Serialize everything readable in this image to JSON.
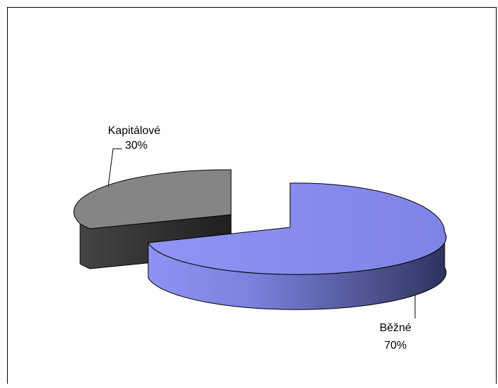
{
  "chart_data": {
    "type": "pie",
    "three_d": true,
    "exploded": true,
    "title": "",
    "slices": [
      {
        "label": "Běžné",
        "value": 70,
        "percent_label": "70%",
        "color": "#8A8EF0",
        "dark_color": "#3A3F73"
      },
      {
        "label": "Kapitálové",
        "value": 30,
        "percent_label": "30%",
        "color": "#808080",
        "dark_color": "#2A2A2A"
      }
    ],
    "legend": false
  }
}
